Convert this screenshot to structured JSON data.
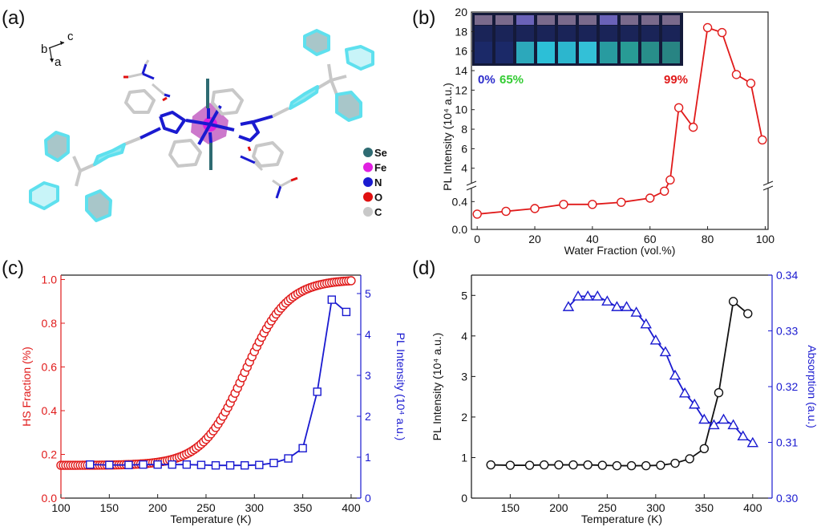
{
  "panels": {
    "a": {
      "label": "(a)",
      "axes": {
        "b": "b",
        "c": "c",
        "a": "a"
      },
      "legend": [
        {
          "symbol": "Se",
          "color": "#2e6b72"
        },
        {
          "symbol": "Fe",
          "color": "#e020e0"
        },
        {
          "symbol": "N",
          "color": "#1a1ad0"
        },
        {
          "symbol": "O",
          "color": "#e01010"
        },
        {
          "symbol": "C",
          "color": "#c8c8c8"
        }
      ]
    },
    "b": {
      "label": "(b)"
    },
    "c": {
      "label": "(c)"
    },
    "d": {
      "label": "(d)"
    }
  },
  "chart_data": [
    {
      "id": "b",
      "type": "line",
      "title": "",
      "xlabel": "Water Fraction (vol.%)",
      "ylabel": "PL Intensity (10^4 a.u.)",
      "xlim": [
        -2,
        101
      ],
      "x_ticks": [
        0,
        20,
        40,
        60,
        80,
        100
      ],
      "y_broken_axis": true,
      "y_lower_ticks": [
        "0.0",
        "0.4"
      ],
      "y_upper_ticks": [
        "4",
        "6",
        "8",
        "10",
        "12",
        "14",
        "16",
        "18",
        "20"
      ],
      "series": [
        {
          "name": "PL Intensity",
          "color": "#e01a1a",
          "marker": "circle-open",
          "x": [
            0,
            10,
            20,
            30,
            40,
            50,
            60,
            65,
            67,
            70,
            75,
            80,
            85,
            90,
            95,
            99
          ],
          "y": [
            0.22,
            0.26,
            0.3,
            0.36,
            0.36,
            0.39,
            0.45,
            0.55,
            2.8,
            10.2,
            8.2,
            18.4,
            17.9,
            13.6,
            12.7,
            6.9
          ]
        }
      ],
      "inset_annotations": [
        {
          "text": "0%",
          "color": "#2c2ccc"
        },
        {
          "text": "65%",
          "color": "#33cc33"
        },
        {
          "text": "99%",
          "color": "#e01a1a"
        }
      ]
    },
    {
      "id": "c",
      "type": "line",
      "xlabel": "Temperature (K)",
      "ylabel_left": "HS Fraction (%)",
      "ylabel_right": "PL Intensity (10^4 a.u.)",
      "xlim": [
        100,
        410
      ],
      "ylim_left": [
        0,
        1.02
      ],
      "ylim_right": [
        0,
        5.45
      ],
      "x_ticks": [
        100,
        150,
        200,
        250,
        300,
        350,
        400
      ],
      "y_left_ticks": [
        "0.0",
        "0.2",
        "0.4",
        "0.6",
        "0.8",
        "1.0"
      ],
      "y_right_ticks": [
        "0",
        "1",
        "2",
        "3",
        "4",
        "5"
      ],
      "left_color": "#e01a1a",
      "right_color": "#1a1ad0",
      "series": [
        {
          "name": "HS Fraction",
          "axis": "left",
          "color": "#e01a1a",
          "marker": "circle-open",
          "sigmoid": {
            "t_start": 100,
            "t_end": 400,
            "step": 2.5,
            "base": 0.15,
            "top": 1.0,
            "t_half": 290,
            "width": 22
          }
        },
        {
          "name": "PL Intensity",
          "axis": "right",
          "color": "#1a1ad0",
          "marker": "square-open",
          "x": [
            130,
            150,
            170,
            185,
            200,
            215,
            230,
            245,
            260,
            275,
            290,
            305,
            320,
            335,
            350,
            365,
            380,
            395
          ],
          "y": [
            0.82,
            0.81,
            0.81,
            0.82,
            0.82,
            0.82,
            0.82,
            0.81,
            0.8,
            0.8,
            0.8,
            0.81,
            0.86,
            0.97,
            1.22,
            2.6,
            4.85,
            4.55
          ]
        }
      ]
    },
    {
      "id": "d",
      "type": "line",
      "xlabel": "Temperature (K)",
      "ylabel_left": "PL Intensity (10^4 a.u.)",
      "ylabel_right": "Absorption (a.u.)",
      "xlim": [
        110,
        420
      ],
      "ylim_left": [
        0,
        5.5
      ],
      "ylim_right": [
        0.3,
        0.34
      ],
      "x_ticks": [
        150,
        200,
        250,
        300,
        350,
        400
      ],
      "y_left_ticks": [
        "0",
        "1",
        "2",
        "3",
        "4",
        "5"
      ],
      "y_right_ticks": [
        "0.30",
        "0.31",
        "0.32",
        "0.33",
        "0.34"
      ],
      "left_color": "#111111",
      "right_color": "#1a1ad0",
      "series": [
        {
          "name": "PL Intensity",
          "axis": "left",
          "color": "#111111",
          "marker": "circle-open",
          "x": [
            130,
            150,
            170,
            185,
            200,
            215,
            230,
            245,
            260,
            275,
            290,
            305,
            320,
            335,
            350,
            365,
            380,
            395
          ],
          "y": [
            0.82,
            0.81,
            0.81,
            0.82,
            0.82,
            0.82,
            0.82,
            0.81,
            0.8,
            0.8,
            0.8,
            0.81,
            0.86,
            0.97,
            1.22,
            2.6,
            4.85,
            4.55
          ]
        },
        {
          "name": "Absorption",
          "axis": "right",
          "color": "#1a1ad0",
          "marker": "triangle-open",
          "x": [
            210,
            220,
            230,
            240,
            250,
            260,
            270,
            280,
            290,
            300,
            310,
            320,
            330,
            340,
            350,
            360,
            370,
            380,
            390,
            400
          ],
          "y": [
            0.3343,
            0.3362,
            0.3362,
            0.3362,
            0.3353,
            0.3343,
            0.3343,
            0.3333,
            0.3312,
            0.3283,
            0.3262,
            0.322,
            0.3188,
            0.3168,
            0.3141,
            0.3131,
            0.3141,
            0.3131,
            0.3111,
            0.3099
          ]
        }
      ]
    }
  ]
}
